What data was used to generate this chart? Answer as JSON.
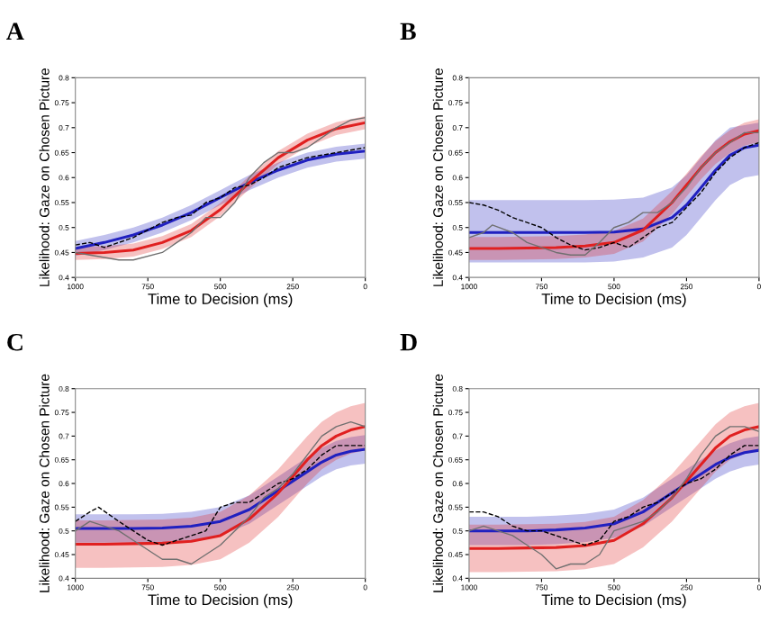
{
  "chart_data": [
    {
      "type": "line",
      "title": "A",
      "xlabel": "Time to Decision (ms)",
      "ylabel": "Likelihood: Gaze on Chosen Picture",
      "xlim": [
        1000,
        0
      ],
      "ylim": [
        0.4,
        0.8
      ],
      "xticks": [
        1000,
        750,
        500,
        250,
        0
      ],
      "yticks": [
        0.4,
        0.45,
        0.5,
        0.55,
        0.6,
        0.65,
        0.7,
        0.75,
        0.8
      ],
      "grid": false,
      "legend": false,
      "series": [
        {
          "color": "#2020c0",
          "line_style": "solid",
          "x": [
            1000,
            900,
            800,
            700,
            600,
            500,
            400,
            300,
            200,
            100,
            0
          ],
          "values": [
            0.458,
            0.47,
            0.485,
            0.505,
            0.53,
            0.56,
            0.59,
            0.615,
            0.635,
            0.647,
            0.653
          ],
          "lower": [
            0.443,
            0.455,
            0.47,
            0.49,
            0.515,
            0.545,
            0.575,
            0.6,
            0.62,
            0.632,
            0.638
          ],
          "upper": [
            0.473,
            0.485,
            0.5,
            0.52,
            0.545,
            0.575,
            0.605,
            0.63,
            0.65,
            0.662,
            0.668
          ]
        },
        {
          "color": "#e02020",
          "line_style": "solid",
          "x": [
            1000,
            900,
            800,
            700,
            600,
            500,
            400,
            300,
            200,
            100,
            0
          ],
          "values": [
            0.448,
            0.45,
            0.455,
            0.47,
            0.494,
            0.536,
            0.59,
            0.64,
            0.675,
            0.698,
            0.71
          ],
          "lower": [
            0.435,
            0.437,
            0.442,
            0.457,
            0.481,
            0.523,
            0.577,
            0.627,
            0.662,
            0.685,
            0.697
          ],
          "upper": [
            0.461,
            0.463,
            0.468,
            0.483,
            0.507,
            0.549,
            0.603,
            0.653,
            0.688,
            0.711,
            0.723
          ]
        },
        {
          "color": "#000000",
          "line_style": "dashed",
          "x": [
            1000,
            950,
            900,
            850,
            800,
            700,
            650,
            600,
            550,
            500,
            450,
            400,
            350,
            300,
            250,
            200,
            150,
            100,
            50,
            0
          ],
          "values": [
            0.465,
            0.47,
            0.46,
            0.47,
            0.48,
            0.51,
            0.52,
            0.525,
            0.55,
            0.56,
            0.58,
            0.585,
            0.6,
            0.62,
            0.63,
            0.64,
            0.645,
            0.65,
            0.655,
            0.66
          ]
        },
        {
          "color": "#707070",
          "line_style": "solid",
          "x": [
            1000,
            950,
            900,
            850,
            800,
            700,
            650,
            600,
            550,
            500,
            450,
            400,
            350,
            300,
            250,
            200,
            150,
            100,
            50,
            0
          ],
          "values": [
            0.45,
            0.445,
            0.44,
            0.435,
            0.435,
            0.45,
            0.47,
            0.49,
            0.52,
            0.52,
            0.55,
            0.6,
            0.63,
            0.65,
            0.65,
            0.66,
            0.68,
            0.7,
            0.715,
            0.72
          ]
        }
      ]
    },
    {
      "type": "line",
      "title": "B",
      "xlabel": "Time to Decision (ms)",
      "ylabel": "Likelihood: Gaze on Chosen Picture",
      "xlim": [
        1000,
        0
      ],
      "ylim": [
        0.4,
        0.8
      ],
      "xticks": [
        1000,
        750,
        500,
        250,
        0
      ],
      "yticks": [
        0.4,
        0.45,
        0.5,
        0.55,
        0.6,
        0.65,
        0.7,
        0.75,
        0.8
      ],
      "grid": false,
      "legend": false,
      "series": [
        {
          "color": "#2020c0",
          "line_style": "solid",
          "x": [
            1000,
            900,
            800,
            700,
            600,
            500,
            400,
            300,
            250,
            200,
            150,
            100,
            50,
            0
          ],
          "values": [
            0.49,
            0.49,
            0.49,
            0.49,
            0.49,
            0.491,
            0.497,
            0.52,
            0.545,
            0.58,
            0.615,
            0.645,
            0.66,
            0.665
          ],
          "lower": [
            0.43,
            0.43,
            0.43,
            0.43,
            0.43,
            0.432,
            0.44,
            0.46,
            0.485,
            0.52,
            0.555,
            0.585,
            0.6,
            0.605
          ],
          "upper": [
            0.555,
            0.555,
            0.555,
            0.555,
            0.555,
            0.556,
            0.56,
            0.58,
            0.605,
            0.64,
            0.675,
            0.7,
            0.705,
            0.71
          ]
        },
        {
          "color": "#e02020",
          "line_style": "solid",
          "x": [
            1000,
            900,
            800,
            700,
            600,
            500,
            400,
            300,
            250,
            200,
            150,
            100,
            50,
            0
          ],
          "values": [
            0.458,
            0.458,
            0.459,
            0.46,
            0.463,
            0.47,
            0.495,
            0.55,
            0.585,
            0.62,
            0.65,
            0.672,
            0.687,
            0.694
          ],
          "lower": [
            0.435,
            0.435,
            0.436,
            0.437,
            0.44,
            0.447,
            0.472,
            0.527,
            0.562,
            0.597,
            0.627,
            0.649,
            0.664,
            0.671
          ],
          "upper": [
            0.481,
            0.481,
            0.482,
            0.483,
            0.486,
            0.493,
            0.518,
            0.573,
            0.608,
            0.643,
            0.673,
            0.695,
            0.71,
            0.717
          ]
        },
        {
          "color": "#000000",
          "line_style": "dashed",
          "x": [
            1000,
            950,
            900,
            850,
            800,
            750,
            700,
            650,
            600,
            550,
            500,
            450,
            400,
            350,
            300,
            250,
            200,
            150,
            100,
            50,
            0
          ],
          "values": [
            0.55,
            0.545,
            0.535,
            0.52,
            0.51,
            0.5,
            0.48,
            0.465,
            0.455,
            0.46,
            0.47,
            0.46,
            0.48,
            0.5,
            0.51,
            0.54,
            0.57,
            0.61,
            0.64,
            0.66,
            0.67
          ]
        },
        {
          "color": "#707070",
          "line_style": "solid",
          "x": [
            1000,
            950,
            920,
            850,
            800,
            750,
            700,
            650,
            600,
            550,
            500,
            450,
            400,
            350,
            300,
            250,
            200,
            150,
            100,
            50,
            0
          ],
          "values": [
            0.48,
            0.49,
            0.505,
            0.49,
            0.47,
            0.46,
            0.45,
            0.445,
            0.445,
            0.47,
            0.5,
            0.51,
            0.53,
            0.53,
            0.55,
            0.58,
            0.62,
            0.65,
            0.67,
            0.69,
            0.69
          ]
        }
      ]
    },
    {
      "type": "line",
      "title": "C",
      "xlabel": "Time to Decision (ms)",
      "ylabel": "Likelihood: Gaze on Chosen Picture",
      "xlim": [
        1000,
        0
      ],
      "ylim": [
        0.4,
        0.8
      ],
      "xticks": [
        1000,
        750,
        500,
        250,
        0
      ],
      "yticks": [
        0.4,
        0.45,
        0.5,
        0.55,
        0.6,
        0.65,
        0.7,
        0.75,
        0.8
      ],
      "grid": false,
      "legend": false,
      "series": [
        {
          "color": "#2020c0",
          "line_style": "solid",
          "x": [
            1000,
            900,
            800,
            700,
            600,
            500,
            400,
            300,
            250,
            200,
            150,
            100,
            50,
            0
          ],
          "values": [
            0.505,
            0.505,
            0.505,
            0.506,
            0.51,
            0.52,
            0.545,
            0.585,
            0.605,
            0.625,
            0.645,
            0.66,
            0.668,
            0.672
          ],
          "lower": [
            0.475,
            0.475,
            0.475,
            0.476,
            0.48,
            0.49,
            0.515,
            0.555,
            0.575,
            0.595,
            0.615,
            0.63,
            0.638,
            0.642
          ],
          "upper": [
            0.535,
            0.535,
            0.535,
            0.536,
            0.54,
            0.55,
            0.575,
            0.615,
            0.635,
            0.655,
            0.675,
            0.69,
            0.698,
            0.702
          ]
        },
        {
          "color": "#e02020",
          "line_style": "solid",
          "x": [
            1000,
            900,
            800,
            700,
            600,
            500,
            400,
            300,
            250,
            200,
            150,
            100,
            50,
            0
          ],
          "values": [
            0.472,
            0.472,
            0.473,
            0.474,
            0.478,
            0.49,
            0.525,
            0.58,
            0.615,
            0.65,
            0.68,
            0.7,
            0.713,
            0.72
          ],
          "lower": [
            0.422,
            0.422,
            0.423,
            0.424,
            0.428,
            0.44,
            0.475,
            0.53,
            0.565,
            0.6,
            0.63,
            0.65,
            0.663,
            0.67
          ],
          "upper": [
            0.522,
            0.522,
            0.523,
            0.524,
            0.528,
            0.54,
            0.575,
            0.63,
            0.665,
            0.7,
            0.73,
            0.75,
            0.763,
            0.77
          ]
        },
        {
          "color": "#000000",
          "line_style": "dashed",
          "x": [
            1000,
            950,
            920,
            850,
            800,
            750,
            700,
            650,
            600,
            550,
            500,
            450,
            400,
            350,
            300,
            250,
            200,
            150,
            100,
            50,
            0
          ],
          "values": [
            0.52,
            0.54,
            0.55,
            0.52,
            0.5,
            0.48,
            0.47,
            0.48,
            0.49,
            0.5,
            0.55,
            0.56,
            0.56,
            0.58,
            0.6,
            0.61,
            0.63,
            0.66,
            0.68,
            0.68,
            0.68
          ]
        },
        {
          "color": "#707070",
          "line_style": "solid",
          "x": [
            1000,
            950,
            900,
            850,
            800,
            750,
            700,
            650,
            600,
            550,
            500,
            450,
            400,
            350,
            300,
            250,
            200,
            150,
            100,
            50,
            0
          ],
          "values": [
            0.5,
            0.52,
            0.51,
            0.5,
            0.48,
            0.46,
            0.44,
            0.44,
            0.43,
            0.45,
            0.47,
            0.5,
            0.53,
            0.57,
            0.59,
            0.62,
            0.66,
            0.7,
            0.72,
            0.73,
            0.72
          ]
        }
      ]
    },
    {
      "type": "line",
      "title": "D",
      "xlabel": "Time to Decision (ms)",
      "ylabel": "Likelihood: Gaze on Chosen Picture",
      "xlim": [
        1000,
        0
      ],
      "ylim": [
        0.4,
        0.8
      ],
      "xticks": [
        1000,
        750,
        500,
        250,
        0
      ],
      "yticks": [
        0.4,
        0.45,
        0.5,
        0.55,
        0.6,
        0.65,
        0.7,
        0.75,
        0.8
      ],
      "grid": false,
      "legend": false,
      "series": [
        {
          "color": "#2020c0",
          "line_style": "solid",
          "x": [
            1000,
            900,
            800,
            700,
            600,
            500,
            400,
            300,
            250,
            200,
            150,
            100,
            50,
            0
          ],
          "values": [
            0.5,
            0.5,
            0.5,
            0.502,
            0.506,
            0.515,
            0.54,
            0.58,
            0.6,
            0.62,
            0.64,
            0.655,
            0.665,
            0.67
          ],
          "lower": [
            0.47,
            0.47,
            0.47,
            0.472,
            0.476,
            0.485,
            0.51,
            0.55,
            0.57,
            0.59,
            0.61,
            0.625,
            0.635,
            0.64
          ],
          "upper": [
            0.53,
            0.53,
            0.53,
            0.532,
            0.536,
            0.545,
            0.57,
            0.61,
            0.63,
            0.65,
            0.67,
            0.685,
            0.695,
            0.7
          ]
        },
        {
          "color": "#e02020",
          "line_style": "solid",
          "x": [
            1000,
            900,
            800,
            700,
            600,
            500,
            400,
            300,
            250,
            200,
            150,
            100,
            50,
            0
          ],
          "values": [
            0.463,
            0.463,
            0.464,
            0.465,
            0.469,
            0.48,
            0.515,
            0.57,
            0.605,
            0.64,
            0.675,
            0.7,
            0.713,
            0.72
          ],
          "lower": [
            0.413,
            0.413,
            0.414,
            0.415,
            0.419,
            0.43,
            0.465,
            0.52,
            0.555,
            0.59,
            0.625,
            0.65,
            0.663,
            0.67
          ],
          "upper": [
            0.513,
            0.513,
            0.514,
            0.515,
            0.519,
            0.53,
            0.565,
            0.62,
            0.655,
            0.69,
            0.725,
            0.75,
            0.763,
            0.77
          ]
        },
        {
          "color": "#000000",
          "line_style": "dashed",
          "x": [
            1000,
            950,
            900,
            850,
            800,
            750,
            700,
            650,
            600,
            550,
            500,
            450,
            400,
            350,
            300,
            250,
            200,
            150,
            100,
            50,
            0
          ],
          "values": [
            0.54,
            0.54,
            0.53,
            0.51,
            0.5,
            0.5,
            0.49,
            0.48,
            0.47,
            0.48,
            0.52,
            0.53,
            0.55,
            0.56,
            0.58,
            0.6,
            0.61,
            0.63,
            0.66,
            0.68,
            0.68
          ]
        },
        {
          "color": "#707070",
          "line_style": "solid",
          "x": [
            1000,
            950,
            900,
            850,
            800,
            750,
            700,
            650,
            600,
            550,
            500,
            450,
            400,
            350,
            300,
            250,
            200,
            150,
            100,
            50,
            0
          ],
          "values": [
            0.5,
            0.51,
            0.5,
            0.49,
            0.47,
            0.45,
            0.42,
            0.43,
            0.43,
            0.45,
            0.5,
            0.51,
            0.52,
            0.54,
            0.57,
            0.61,
            0.66,
            0.7,
            0.72,
            0.72,
            0.71
          ]
        }
      ]
    }
  ]
}
